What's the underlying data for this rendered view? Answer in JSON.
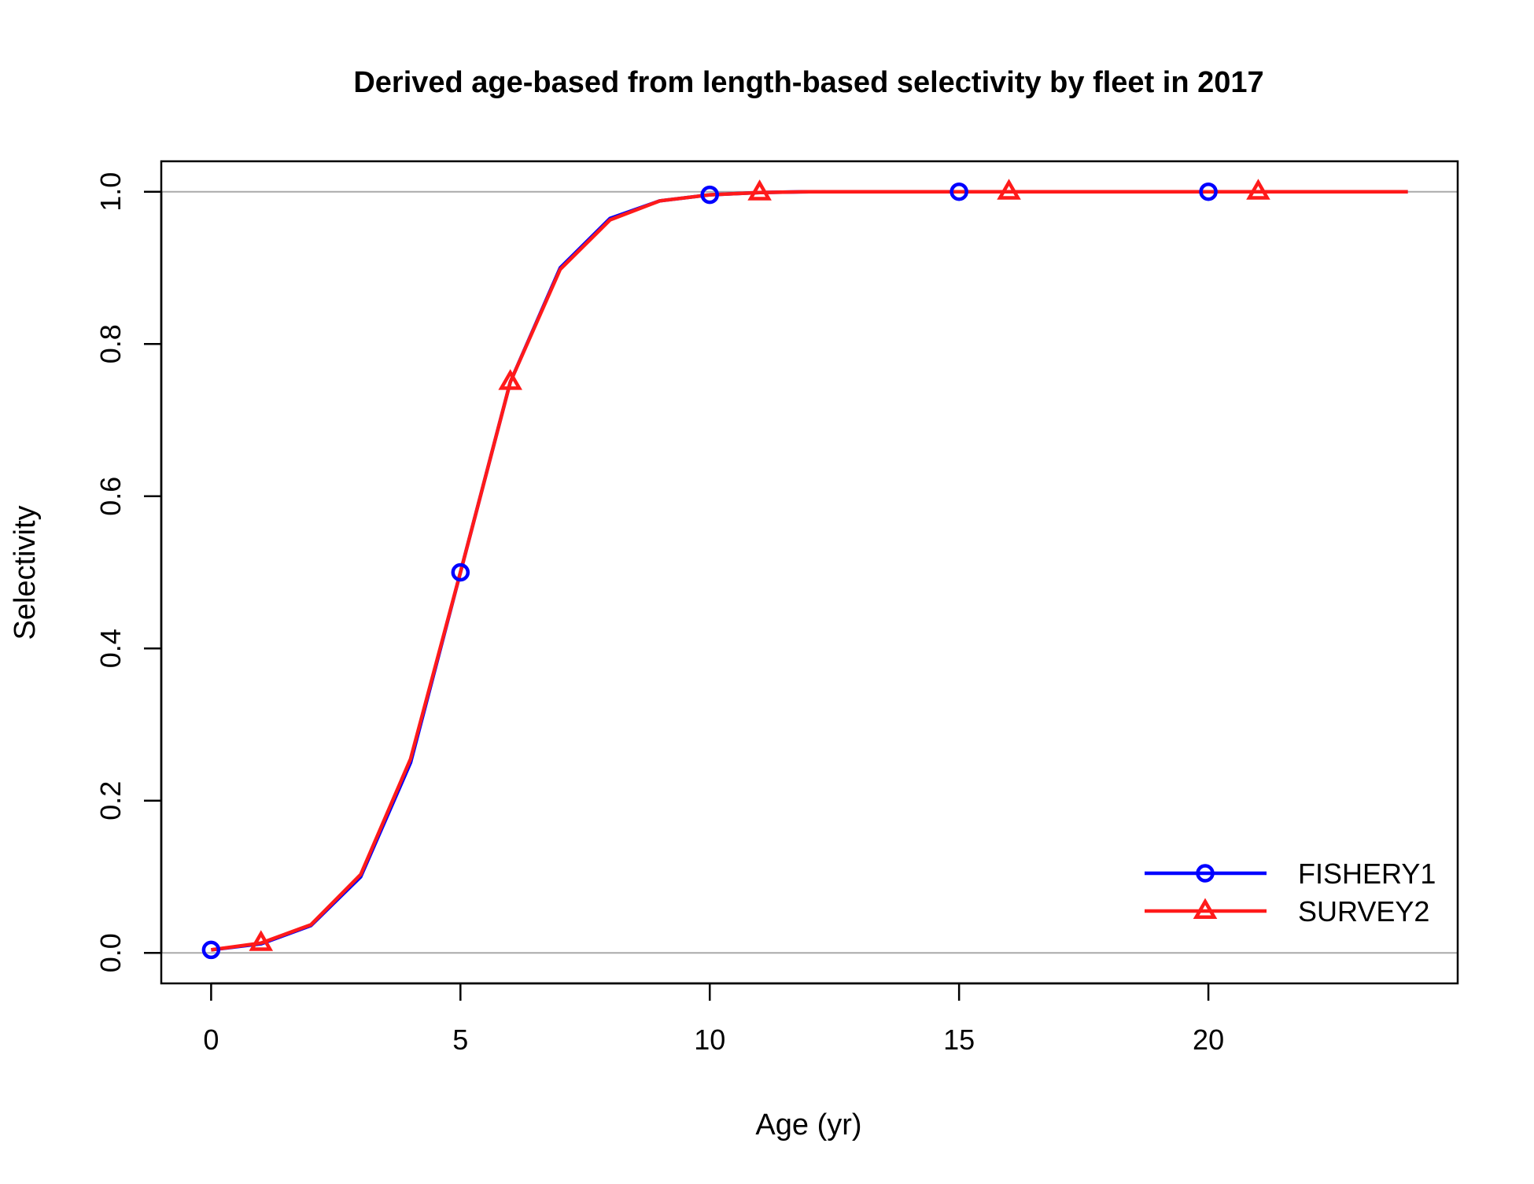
{
  "chart_data": {
    "type": "line",
    "title": "Derived age-based from length-based selectivity by fleet in 2017",
    "xlabel": "Age (yr)",
    "ylabel": "Selectivity",
    "xlim": [
      -1,
      25
    ],
    "ylim": [
      -0.04,
      1.04
    ],
    "x_ticks": [
      0,
      5,
      10,
      15,
      20
    ],
    "y_ticks": [
      0.0,
      0.2,
      0.4,
      0.6,
      0.8,
      1.0
    ],
    "x_tick_labels": [
      "0",
      "5",
      "10",
      "15",
      "20"
    ],
    "y_tick_labels": [
      "0.0",
      "0.2",
      "0.4",
      "0.6",
      "0.8",
      "1.0"
    ],
    "reference_lines_y": [
      0,
      1
    ],
    "reference_line_color": "#aaaaaa",
    "legend_position": "bottom-right",
    "x": [
      0,
      1,
      2,
      3,
      4,
      5,
      6,
      7,
      8,
      9,
      10,
      11,
      12,
      13,
      14,
      15,
      16,
      17,
      18,
      19,
      20,
      21,
      22,
      23,
      24
    ],
    "series": [
      {
        "name": "FISHERY1",
        "color": "#0000ff",
        "marker": "circle",
        "marker_x": [
          0,
          5,
          10,
          15,
          20
        ],
        "values": [
          0.004,
          0.012,
          0.036,
          0.1,
          0.25,
          0.5,
          0.75,
          0.9,
          0.965,
          0.988,
          0.996,
          0.999,
          1.0,
          1.0,
          1.0,
          1.0,
          1.0,
          1.0,
          1.0,
          1.0,
          1.0,
          1.0,
          1.0,
          1.0,
          1.0
        ]
      },
      {
        "name": "SURVEY2",
        "color": "#ff1a1a",
        "marker": "triangle",
        "marker_x": [
          1,
          6,
          11,
          16,
          21
        ],
        "values": [
          0.004,
          0.013,
          0.037,
          0.103,
          0.255,
          0.5,
          0.75,
          0.898,
          0.963,
          0.988,
          0.996,
          0.999,
          1.0,
          1.0,
          1.0,
          1.0,
          1.0,
          1.0,
          1.0,
          1.0,
          1.0,
          1.0,
          1.0,
          1.0,
          1.0
        ]
      }
    ]
  }
}
